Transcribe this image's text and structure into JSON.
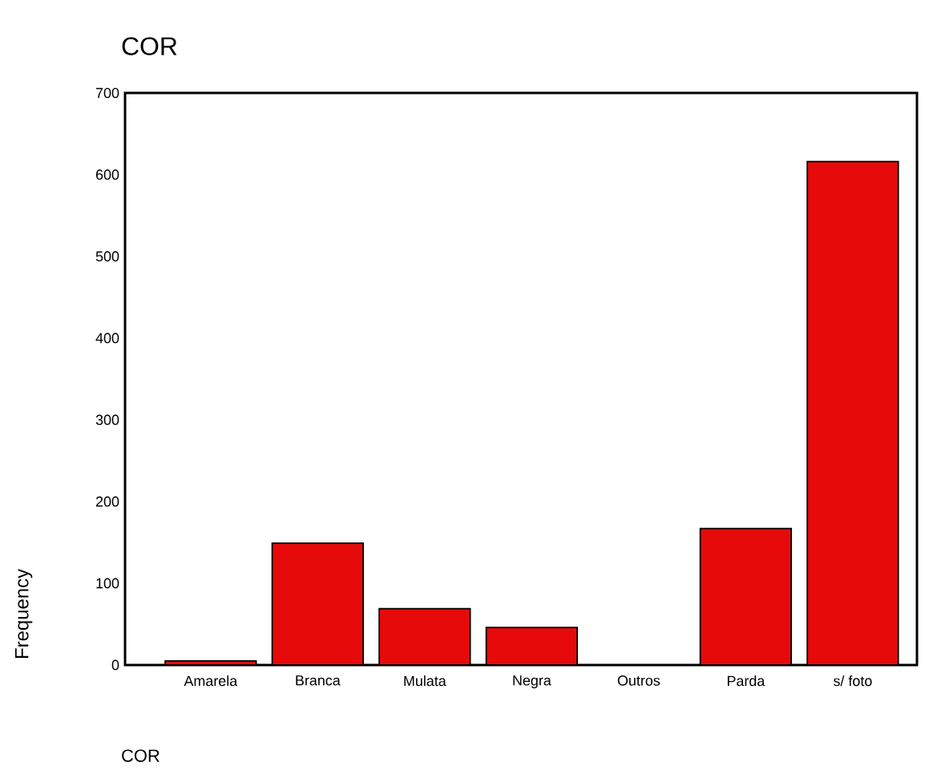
{
  "chart_data": {
    "type": "bar",
    "title": "COR",
    "xlabel": "COR",
    "ylabel": "Frequency",
    "categories": [
      "Amarela",
      "Branca",
      "Mulata",
      "Negra",
      "Outros",
      "Parda",
      "s/ foto"
    ],
    "values": [
      5,
      149,
      69,
      46,
      0,
      167,
      616
    ],
    "color": "#e60a0a",
    "ylim": [
      0,
      700
    ],
    "yticks": [
      0,
      100,
      200,
      300,
      400,
      500,
      600,
      700
    ]
  }
}
